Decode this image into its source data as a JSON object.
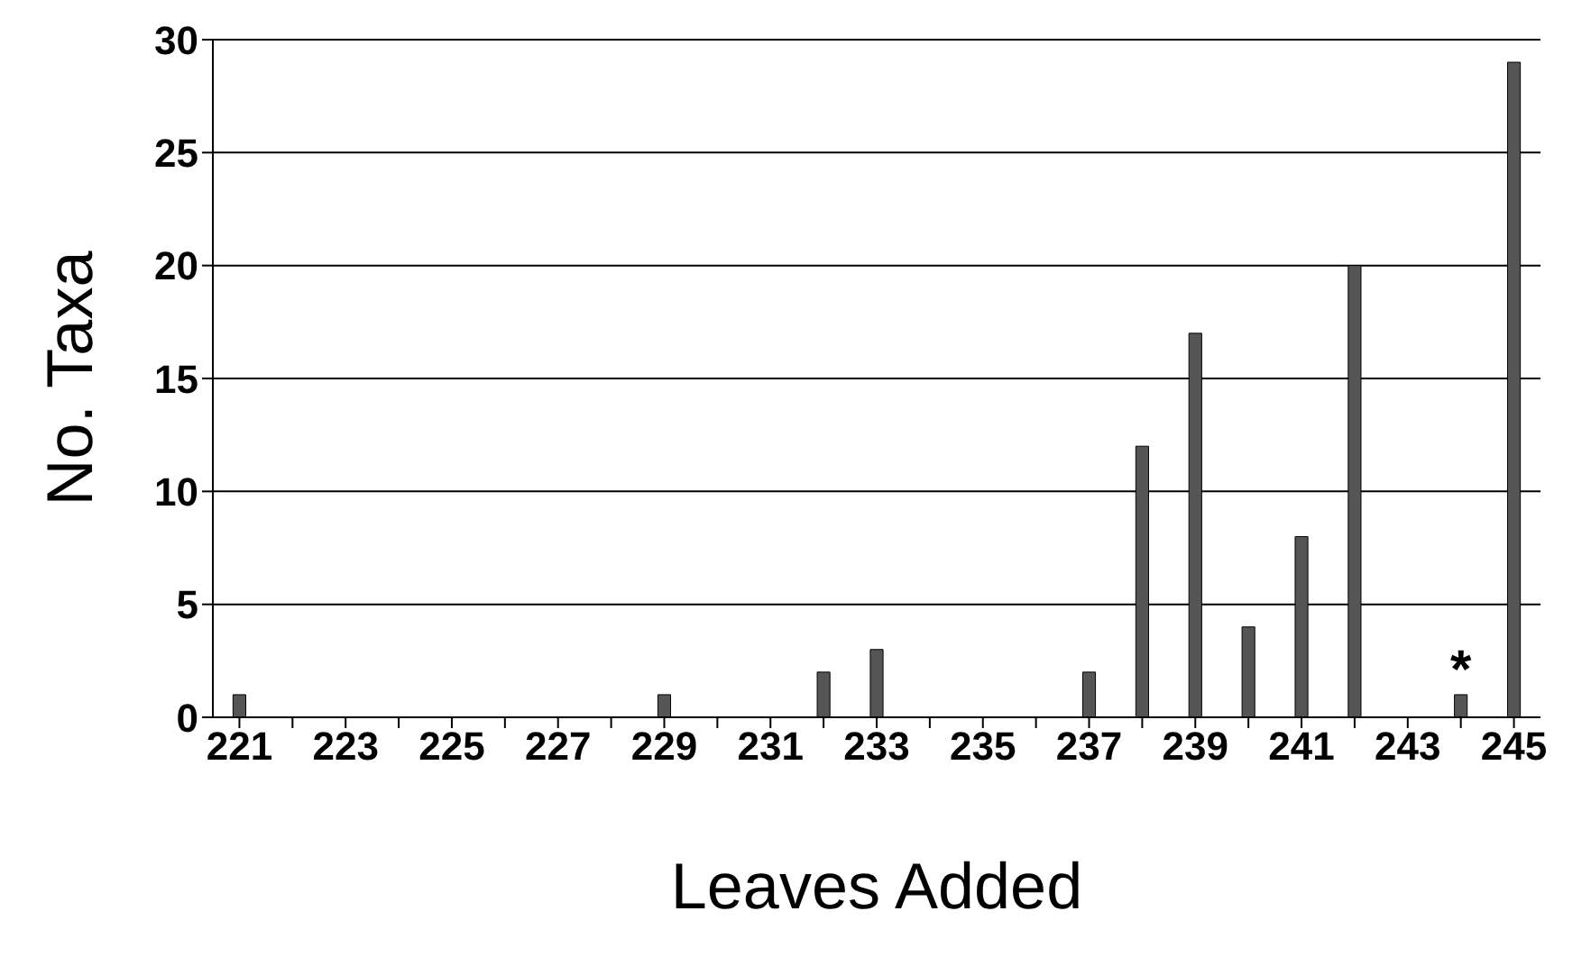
{
  "chart_data": {
    "type": "bar",
    "xlabel": "Leaves Added",
    "ylabel": "No. Taxa",
    "categories": [
      "221",
      null,
      "223",
      null,
      "225",
      null,
      "227",
      null,
      "229",
      null,
      "231",
      null,
      "233",
      null,
      "235",
      null,
      "237",
      null,
      "239",
      null,
      "241",
      null,
      "243",
      null,
      "245"
    ],
    "values": [
      1,
      0,
      0,
      0,
      0,
      0,
      0,
      0,
      1,
      0,
      0,
      2,
      3,
      0,
      0,
      0,
      2,
      12,
      17,
      4,
      8,
      20,
      0,
      1,
      29
    ],
    "color": "#555555",
    "ylim": [
      0,
      30
    ],
    "yticks": [
      0,
      5,
      10,
      15,
      20,
      25,
      30
    ],
    "grid": "y",
    "annotations": [
      {
        "text": "*",
        "y": 1
      }
    ]
  }
}
